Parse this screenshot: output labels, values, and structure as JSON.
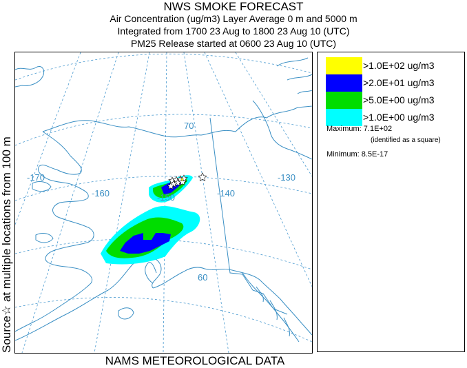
{
  "title": {
    "line1": "NWS SMOKE FORECAST",
    "line2": "Air Concentration (ug/m3) Layer Average    0 m and  5000 m",
    "line3": "Integrated from 1700 23 Aug to 1800 23 Aug 10 (UTC)",
    "line4": "PM25 Release started at 0600 23 Aug 10 (UTC)"
  },
  "side_label": "Source☆ at multiple locations  from  100 m",
  "bottom_label": "NAMS METEOROLOGICAL DATA",
  "legend": {
    "items": [
      {
        "label": ">1.0E+02 ug/m3",
        "color": "#ffff00"
      },
      {
        "label": ">2.0E+01 ug/m3",
        "color": "#0000ff"
      },
      {
        "label": ">5.0E+00 ug/m3",
        "color": "#00dd00"
      },
      {
        "label": ">1.0E+00 ug/m3",
        "color": "#00ffff"
      }
    ],
    "maximum": "Maximum: 7.1E+02",
    "maximum_note": "(identified as a square)",
    "minimum": "Minimum: 8.5E-17"
  },
  "map": {
    "lon_labels": [
      "-170",
      "-160",
      "-150",
      "-140",
      "-130"
    ],
    "lat_labels": [
      "70",
      "60"
    ],
    "colors": {
      "grid": "#4a9ad0",
      "coast": "#3a8fc4",
      "cyan": "#00ffff",
      "green": "#00dd00",
      "blue": "#0000ff",
      "yellow": "#ffff00"
    }
  }
}
